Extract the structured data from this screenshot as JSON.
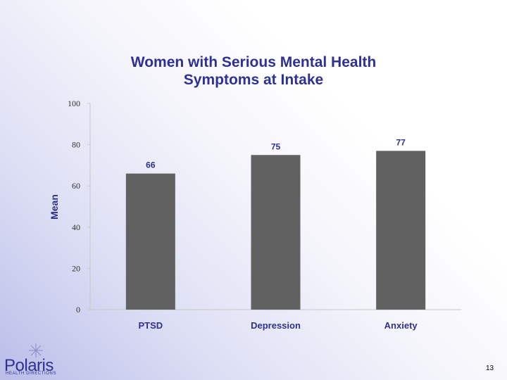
{
  "title_lines": [
    "Women with Serious Mental Health",
    "Symptoms at Intake"
  ],
  "logo": {
    "name": "Polaris",
    "subtitle": "HEALTH DIRECTIONS"
  },
  "page_number": "13",
  "colors": {
    "bar": "#616161",
    "text": "#2e3192",
    "axis": "#c8c8c8"
  },
  "chart_data": {
    "type": "bar",
    "title": "Women with Serious Mental Health Symptoms at Intake",
    "categories": [
      "PTSD",
      "Depression",
      "Anxiety"
    ],
    "values": [
      66,
      75,
      77
    ],
    "data_labels": [
      "66",
      "75",
      "77"
    ],
    "xlabel": "",
    "ylabel": "Mean",
    "ylim": [
      0,
      100
    ],
    "yticks": [
      0,
      20,
      40,
      60,
      80,
      100
    ],
    "grid": false,
    "legend": "none"
  }
}
